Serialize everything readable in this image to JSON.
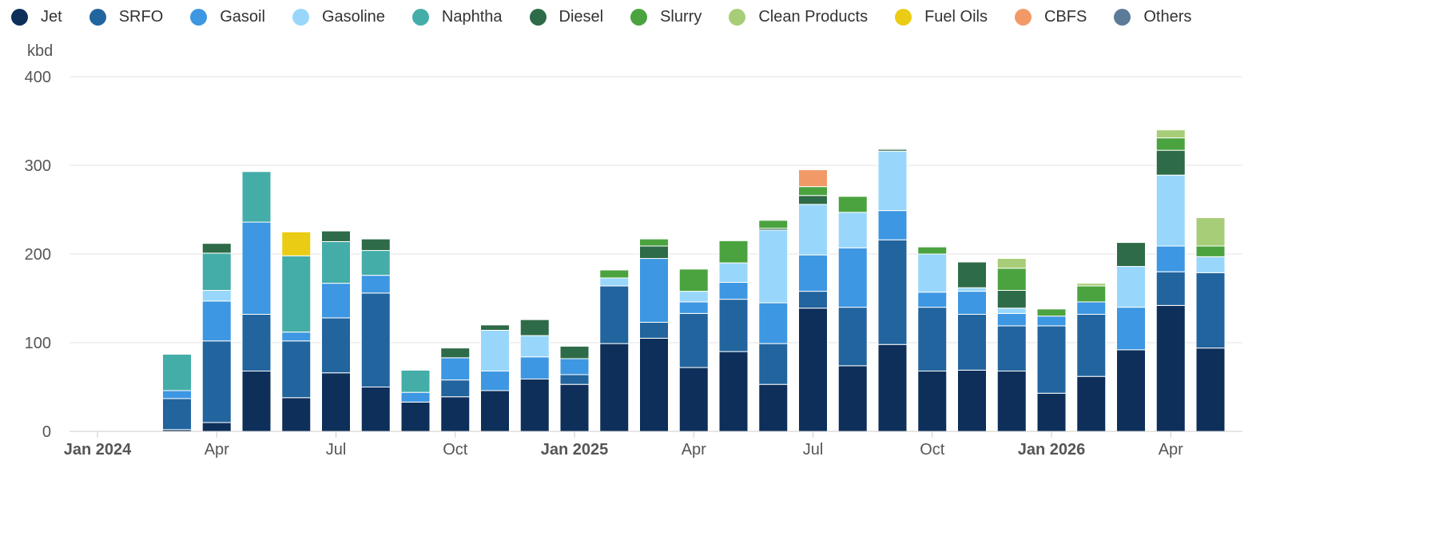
{
  "chart_data": {
    "type": "bar",
    "stacked": true,
    "title": "",
    "ylabel": "kbd",
    "xlabel": "",
    "ylim": [
      0,
      400
    ],
    "yticks": [
      0,
      100,
      200,
      300,
      400
    ],
    "grid": true,
    "legend_position": "top-left",
    "x_tick_labels": [
      {
        "label": "Jan 2024",
        "index": 0,
        "bold": true
      },
      {
        "label": "Apr",
        "index": 3,
        "bold": false
      },
      {
        "label": "Jul",
        "index": 6,
        "bold": false
      },
      {
        "label": "Oct",
        "index": 9,
        "bold": false
      },
      {
        "label": "Jan 2025",
        "index": 12,
        "bold": true
      },
      {
        "label": "Apr",
        "index": 15,
        "bold": false
      },
      {
        "label": "Jul",
        "index": 18,
        "bold": false
      },
      {
        "label": "Oct",
        "index": 21,
        "bold": false
      },
      {
        "label": "Jan 2026",
        "index": 24,
        "bold": true
      },
      {
        "label": "Apr",
        "index": 27,
        "bold": false
      }
    ],
    "categories": [
      "Jan 2024",
      "Feb 2024",
      "Mar 2024",
      "Apr 2024",
      "May 2024",
      "Jun 2024",
      "Jul 2024",
      "Aug 2024",
      "Sep 2024",
      "Oct 2024",
      "Nov 2024",
      "Dec 2024",
      "Jan 2025",
      "Feb 2025",
      "Mar 2025",
      "Apr 2025",
      "May 2025",
      "Jun 2025",
      "Jul 2025",
      "Aug 2025",
      "Sep 2025",
      "Oct 2025",
      "Nov 2025",
      "Dec 2025",
      "Jan 2026",
      "Feb 2026",
      "Mar 2026",
      "Apr 2026",
      "May 2026"
    ],
    "series": [
      {
        "name": "Jet",
        "color": "#0d2f5a",
        "values": [
          0,
          0,
          2,
          10,
          68,
          38,
          66,
          50,
          33,
          39,
          46,
          59,
          53,
          99,
          105,
          72,
          90,
          53,
          139,
          74,
          98,
          68,
          69,
          68,
          43,
          62,
          92,
          142,
          94
        ]
      },
      {
        "name": "SRFO",
        "color": "#22649e",
        "values": [
          0,
          0,
          35,
          92,
          64,
          64,
          62,
          106,
          0,
          19,
          0,
          0,
          11,
          65,
          18,
          61,
          59,
          46,
          19,
          66,
          118,
          72,
          63,
          51,
          76,
          70,
          0,
          38,
          85
        ]
      },
      {
        "name": "Gasoil",
        "color": "#3d97e2",
        "values": [
          0,
          0,
          9,
          45,
          104,
          10,
          39,
          20,
          11,
          25,
          22,
          25,
          18,
          0,
          72,
          13,
          19,
          46,
          41,
          67,
          33,
          17,
          26,
          14,
          11,
          14,
          48,
          29,
          0
        ]
      },
      {
        "name": "Gasoline",
        "color": "#98d7fb",
        "values": [
          0,
          0,
          0,
          12,
          0,
          0,
          0,
          0,
          0,
          0,
          46,
          24,
          0,
          9,
          0,
          12,
          22,
          82,
          57,
          40,
          67,
          43,
          4,
          6,
          0,
          0,
          46,
          80,
          18
        ]
      },
      {
        "name": "Naphtha",
        "color": "#45ada8",
        "values": [
          0,
          0,
          41,
          42,
          57,
          86,
          47,
          28,
          25,
          0,
          0,
          0,
          0,
          0,
          0,
          0,
          0,
          0,
          0,
          0,
          0,
          0,
          0,
          0,
          0,
          0,
          0,
          0,
          0
        ]
      },
      {
        "name": "Diesel",
        "color": "#2e6b48",
        "values": [
          0,
          0,
          0,
          11,
          0,
          0,
          12,
          13,
          0,
          11,
          6,
          18,
          14,
          0,
          14,
          0,
          0,
          2,
          10,
          0,
          2,
          0,
          29,
          20,
          0,
          0,
          27,
          28,
          0
        ]
      },
      {
        "name": "Slurry",
        "color": "#4ba33f",
        "values": [
          0,
          0,
          0,
          0,
          0,
          0,
          0,
          0,
          0,
          0,
          0,
          0,
          0,
          9,
          8,
          25,
          25,
          9,
          10,
          18,
          0,
          8,
          0,
          25,
          8,
          18,
          0,
          14,
          12
        ]
      },
      {
        "name": "Clean Products",
        "color": "#a8cd78",
        "values": [
          0,
          0,
          0,
          0,
          0,
          0,
          0,
          0,
          0,
          0,
          0,
          0,
          0,
          0,
          0,
          0,
          0,
          0,
          0,
          0,
          0,
          0,
          0,
          11,
          0,
          3,
          0,
          9,
          32
        ]
      },
      {
        "name": "Fuel Oils",
        "color": "#eacc14",
        "values": [
          0,
          0,
          0,
          0,
          0,
          27,
          0,
          0,
          0,
          0,
          0,
          0,
          0,
          0,
          0,
          0,
          0,
          0,
          0,
          0,
          0,
          0,
          0,
          0,
          0,
          0,
          0,
          0,
          0
        ]
      },
      {
        "name": "CBFS",
        "color": "#f29a67",
        "values": [
          0,
          0,
          0,
          0,
          0,
          0,
          0,
          0,
          0,
          0,
          0,
          0,
          0,
          0,
          0,
          0,
          0,
          0,
          19,
          0,
          0,
          0,
          0,
          0,
          0,
          0,
          0,
          0,
          0
        ]
      },
      {
        "name": "Others",
        "color": "#5b7b99",
        "values": [
          0,
          0,
          0,
          0,
          0,
          0,
          0,
          0,
          0,
          0,
          0,
          0,
          0,
          0,
          0,
          0,
          0,
          0,
          0,
          0,
          1,
          0,
          0,
          0,
          0,
          0,
          0,
          0,
          0
        ]
      }
    ]
  }
}
